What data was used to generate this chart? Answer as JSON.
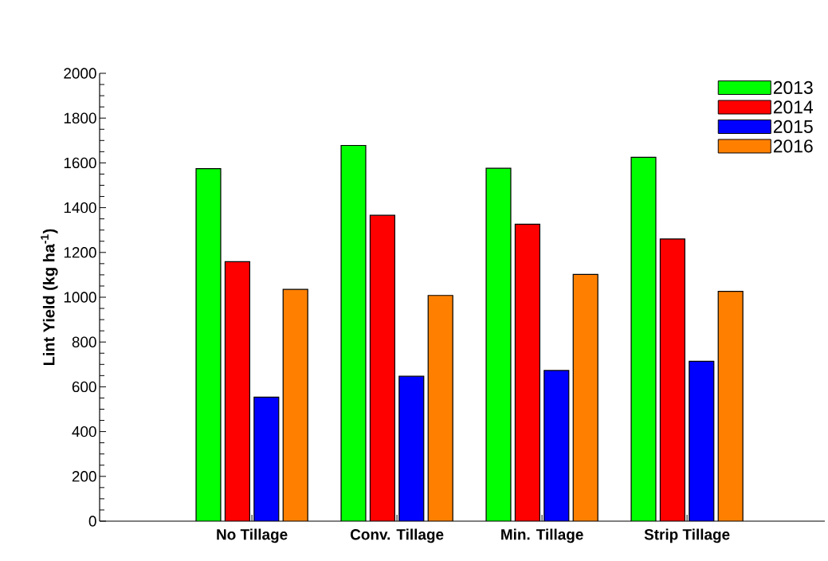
{
  "chart_data": {
    "type": "bar",
    "ylabel": "**Lint Yield (kg ha$^{-1}$)**",
    "categories": [
      "No Tillage",
      "Conv. Tillage",
      "Min. Tillage",
      "Strip Tillage"
    ],
    "series": [
      {
        "name": "2013",
        "color": "#00ff00",
        "values": [
          1574,
          1678,
          1576,
          1625
        ]
      },
      {
        "name": "2014",
        "color": "#ff0000",
        "values": [
          1159,
          1366,
          1326,
          1260
        ]
      },
      {
        "name": "2015",
        "color": "#0000ff",
        "values": [
          554,
          647,
          673,
          714
        ]
      },
      {
        "name": "2016",
        "color": "#ff8000",
        "values": [
          1035,
          1008,
          1102,
          1026
        ]
      }
    ],
    "ylim": [
      0,
      2000
    ],
    "yticks": [
      0,
      200,
      400,
      600,
      800,
      1000,
      1200,
      1400,
      1600,
      1800,
      2000
    ],
    "legend": "top right"
  }
}
